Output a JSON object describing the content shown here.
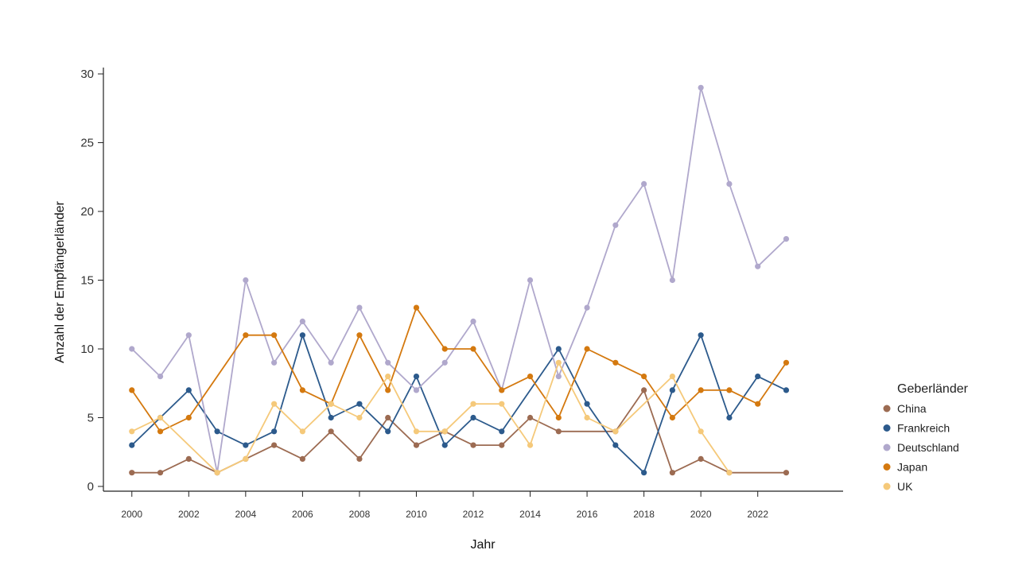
{
  "chart_data": {
    "type": "line",
    "title": "",
    "xlabel": "Jahr",
    "ylabel": "Anzahl der Empfängerländer",
    "xlim": [
      1999,
      2025
    ],
    "ylim": [
      0,
      30
    ],
    "xticks": [
      2000,
      2002,
      2004,
      2006,
      2008,
      2010,
      2012,
      2014,
      2016,
      2018,
      2020,
      2022
    ],
    "yticks": [
      0,
      5,
      10,
      15,
      20,
      25,
      30
    ],
    "grid": false,
    "legend": {
      "title": "Geberländer",
      "position": "right"
    },
    "x": [
      2000,
      2001,
      2002,
      2003,
      2004,
      2005,
      2006,
      2007,
      2008,
      2009,
      2010,
      2011,
      2012,
      2013,
      2014,
      2015,
      2016,
      2017,
      2018,
      2019,
      2020,
      2021,
      2022,
      2023
    ],
    "series": [
      {
        "name": "China",
        "color": "#9c6b52",
        "values": [
          1,
          1,
          2,
          1,
          2,
          3,
          2,
          4,
          2,
          5,
          3,
          4,
          3,
          3,
          5,
          4,
          null,
          4,
          7,
          1,
          2,
          1,
          null,
          1
        ]
      },
      {
        "name": "Frankreich",
        "color": "#2c5a8c",
        "values": [
          3,
          5,
          7,
          4,
          3,
          4,
          11,
          5,
          6,
          4,
          8,
          3,
          5,
          4,
          null,
          10,
          6,
          3,
          1,
          7,
          11,
          5,
          8,
          7
        ]
      },
      {
        "name": "Deutschland",
        "color": "#b0a8cc",
        "values": [
          10,
          8,
          11,
          1,
          15,
          9,
          12,
          9,
          13,
          9,
          7,
          9,
          12,
          7,
          15,
          8,
          13,
          19,
          22,
          15,
          29,
          22,
          16,
          18
        ]
      },
      {
        "name": "Japan",
        "color": "#d4790f",
        "values": [
          7,
          4,
          5,
          null,
          11,
          11,
          7,
          6,
          11,
          7,
          13,
          10,
          10,
          7,
          8,
          5,
          10,
          9,
          8,
          5,
          7,
          7,
          6,
          9
        ]
      },
      {
        "name": "UK",
        "color": "#f5c97a",
        "values": [
          4,
          5,
          null,
          1,
          2,
          6,
          4,
          6,
          5,
          8,
          4,
          4,
          6,
          6,
          3,
          9,
          5,
          4,
          null,
          8,
          4,
          1,
          null,
          null
        ]
      }
    ]
  }
}
